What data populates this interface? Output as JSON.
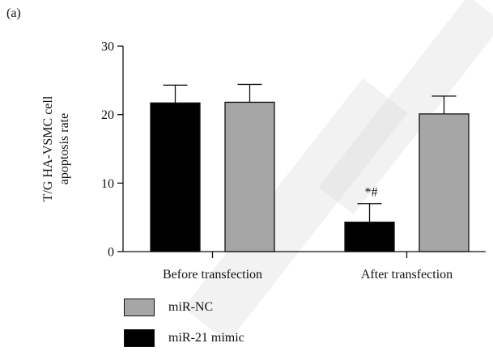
{
  "panel_label": "(a)",
  "colors": {
    "mimic": "#000000",
    "nc": "#a6a6a6",
    "axis": "#111111"
  },
  "chart_data": {
    "type": "bar",
    "ylabel": "T/G HA-VSMC cell apoptosis rate",
    "ylabel_lines": [
      "T/G HA-VSMC cell",
      "apoptosis rate"
    ],
    "ylim": [
      0,
      30
    ],
    "yticks": [
      0,
      10,
      20,
      30
    ],
    "categories": [
      "Before transfection",
      "After transfection"
    ],
    "series": [
      {
        "name": "miR-21 mimic",
        "color": "#000000",
        "values": [
          21.7,
          4.3
        ],
        "errors": [
          2.6,
          2.7
        ]
      },
      {
        "name": "miR-NC",
        "color": "#a6a6a6",
        "values": [
          21.8,
          20.1
        ],
        "errors": [
          2.6,
          2.6
        ]
      }
    ],
    "annotations": [
      {
        "text": "*#",
        "category": "After transfection",
        "series": "miR-21 mimic"
      }
    ],
    "grid": false,
    "legend_position": "bottom-left"
  },
  "legend": [
    {
      "label": "miR-NC",
      "color": "#a6a6a6"
    },
    {
      "label": "miR-21 mimic",
      "color": "#000000"
    }
  ]
}
